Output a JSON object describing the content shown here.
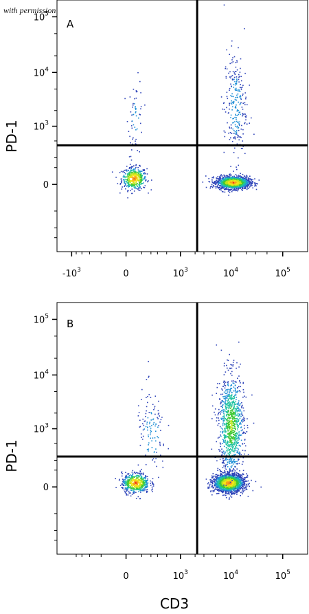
{
  "credit": "with permission from R&D Systems",
  "colors": {
    "gate": "#000000",
    "density": [
      "#2d43b8",
      "#1f8fd6",
      "#1fc2a0",
      "#3fc832",
      "#bde61c",
      "#f7e41a",
      "#f6a21b",
      "#ef2d1c"
    ]
  },
  "chart_data": [
    {
      "type": "scatter",
      "panel_label": "A",
      "xlabel": "",
      "ylabel": "PD-1",
      "x_scale": "biexponential",
      "y_scale": "biexponential",
      "x_ticks": [
        {
          "base": "-10",
          "exp": "3",
          "value": -1000
        },
        {
          "base": "0",
          "exp": "",
          "value": 0
        },
        {
          "base": "10",
          "exp": "3",
          "value": 1000
        },
        {
          "base": "10",
          "exp": "4",
          "value": 10000
        },
        {
          "base": "10",
          "exp": "5",
          "value": 100000
        }
      ],
      "y_ticks": [
        {
          "base": "0",
          "exp": "",
          "value": 0
        },
        {
          "base": "10",
          "exp": "3",
          "value": 1000
        },
        {
          "base": "10",
          "exp": "4",
          "value": 10000
        },
        {
          "base": "10",
          "exp": "5",
          "value": 100000
        }
      ],
      "xlim": [
        -2000,
        300000
      ],
      "ylim": [
        -1500,
        200000
      ],
      "quadrant_gate": {
        "x": 2200,
        "y": 400
      },
      "populations": [
        {
          "x_center": 40,
          "y_center": 30,
          "x_spread": 0.1,
          "y_spread": 0.09,
          "count": 450,
          "density": "high"
        },
        {
          "x_center": 50,
          "y_center": 1500,
          "x_spread": 0.06,
          "y_spread": 0.3,
          "count": 60,
          "density": "low"
        },
        {
          "x_center": 11000,
          "y_center": 10,
          "x_spread": 0.13,
          "y_spread": 0.05,
          "count": 1500,
          "density": "high"
        },
        {
          "x_center": 12000,
          "y_center": 2500,
          "x_spread": 0.09,
          "y_spread": 0.45,
          "count": 260,
          "density": "low"
        }
      ]
    },
    {
      "type": "scatter",
      "panel_label": "B",
      "xlabel": "CD3",
      "ylabel": "PD-1",
      "x_scale": "biexponential",
      "y_scale": "biexponential",
      "x_ticks": [
        {
          "base": "0",
          "exp": "",
          "value": 0
        },
        {
          "base": "10",
          "exp": "3",
          "value": 1000
        },
        {
          "base": "10",
          "exp": "4",
          "value": 10000
        },
        {
          "base": "10",
          "exp": "5",
          "value": 100000
        }
      ],
      "y_ticks": [
        {
          "base": "0",
          "exp": "",
          "value": 0
        },
        {
          "base": "10",
          "exp": "3",
          "value": 1000
        },
        {
          "base": "10",
          "exp": "4",
          "value": 10000
        },
        {
          "base": "10",
          "exp": "5",
          "value": 100000
        }
      ],
      "xlim": [
        -2000,
        300000
      ],
      "ylim": [
        -1500,
        200000
      ],
      "quadrant_gate": {
        "x": 2200,
        "y": 250
      },
      "populations": [
        {
          "x_center": 50,
          "y_center": 20,
          "x_spread": 0.11,
          "y_spread": 0.08,
          "count": 550,
          "density": "high"
        },
        {
          "x_center": 200,
          "y_center": 800,
          "x_spread": 0.12,
          "y_spread": 0.35,
          "count": 120,
          "density": "low"
        },
        {
          "x_center": 9000,
          "y_center": 20,
          "x_spread": 0.12,
          "y_spread": 0.07,
          "count": 1800,
          "density": "high"
        },
        {
          "x_center": 10000,
          "y_center": 1200,
          "x_spread": 0.1,
          "y_spread": 0.4,
          "count": 1000,
          "density": "medium"
        }
      ]
    }
  ]
}
